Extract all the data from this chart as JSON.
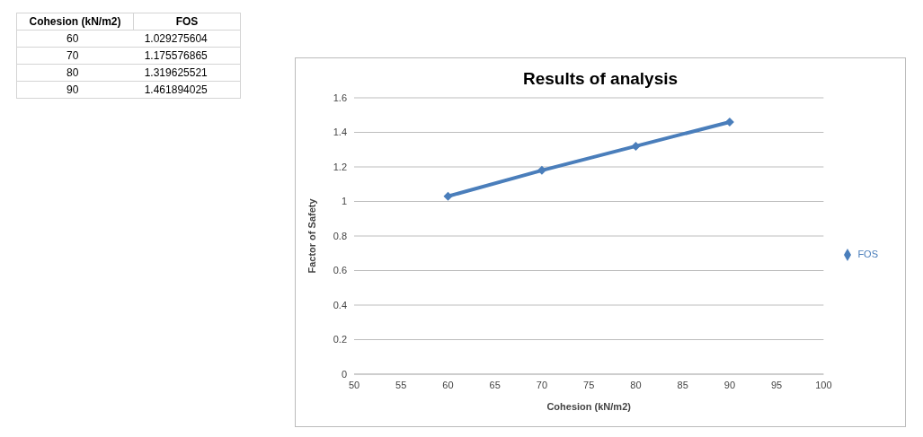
{
  "chart_data": [
    {
      "type": "other",
      "annotations": [
        "Cohesion (kN/m2)",
        "FOS",
        "60 1.029275604",
        "70 1.175576865",
        "80 1.319625521",
        "90 1.461894025"
      ]
    },
    {
      "type": "line",
      "title": "Results of analysis",
      "xlabel": "Cohesion (kN/m2)",
      "ylabel": "Factor of Safety",
      "x": [
        60,
        70,
        80,
        90
      ],
      "series": [
        {
          "name": "FOS",
          "color": "#4a7ebb",
          "values": [
            1.03,
            1.18,
            1.32,
            1.46
          ]
        }
      ],
      "xlim": [
        50,
        100
      ],
      "xticks": [
        50,
        55,
        60,
        65,
        70,
        75,
        80,
        85,
        90,
        95,
        100
      ],
      "ylim": [
        0,
        1.6
      ],
      "yticks": [
        0,
        0.2,
        0.4,
        0.6,
        0.8,
        1,
        1.2,
        1.4,
        1.6
      ],
      "grid": "y",
      "legend": "right",
      "marker": "diamond",
      "line_style": "solid"
    }
  ]
}
